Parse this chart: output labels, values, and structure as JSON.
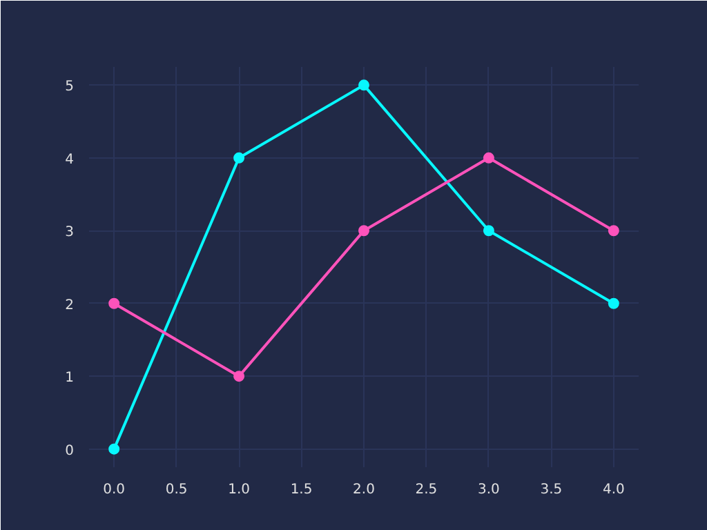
{
  "chart_data": {
    "type": "line",
    "x": [
      0,
      1,
      2,
      3,
      4
    ],
    "series": [
      {
        "color": "#08f7fe",
        "values": [
          0,
          4,
          5,
          3,
          2
        ]
      },
      {
        "color": "#fe53bb",
        "values": [
          2,
          1,
          3,
          4,
          3
        ]
      }
    ],
    "xlim": [
      -0.2,
      4.2
    ],
    "ylim": [
      -0.25,
      5.25
    ],
    "xticks": [
      {
        "value": 0,
        "label": "0.0"
      },
      {
        "value": 0.5,
        "label": "0.5"
      },
      {
        "value": 1,
        "label": "1.0"
      },
      {
        "value": 1.5,
        "label": "1.5"
      },
      {
        "value": 2,
        "label": "2.0"
      },
      {
        "value": 2.5,
        "label": "2.5"
      },
      {
        "value": 3,
        "label": "3.0"
      },
      {
        "value": 3.5,
        "label": "3.5"
      },
      {
        "value": 4,
        "label": "4.0"
      }
    ],
    "yticks": [
      0,
      1,
      2,
      3,
      4,
      5
    ],
    "grid": true,
    "marker": "circle",
    "line_style": "solid"
  }
}
